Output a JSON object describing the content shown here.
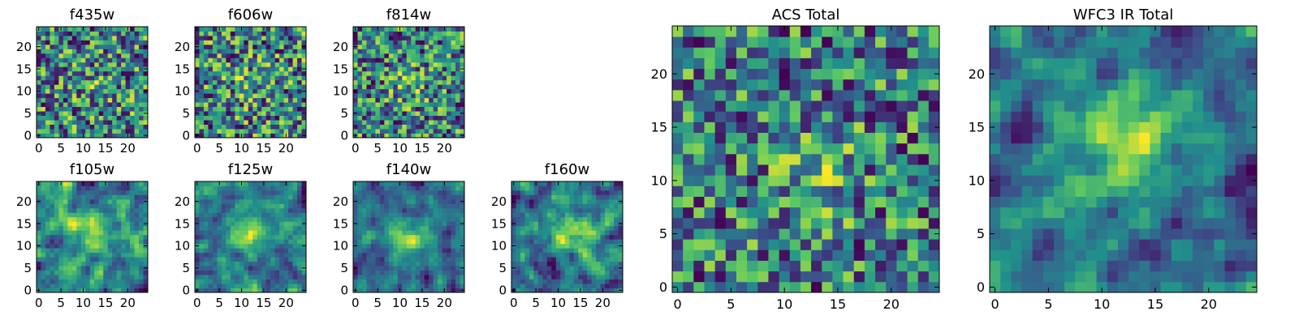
{
  "figure": {
    "colormap": [
      "#440154",
      "#3b528b",
      "#21918c",
      "#5ec962",
      "#fde725"
    ]
  },
  "chart_data": [
    {
      "type": "heatmap",
      "title": "f435w",
      "rows": 25,
      "cols": 25,
      "xticks": [
        0,
        5,
        10,
        15,
        20
      ],
      "yticks": [
        0,
        5,
        10,
        15,
        20
      ],
      "xlim": [
        -0.5,
        24.5
      ],
      "ylim": [
        -0.5,
        24.5
      ],
      "pattern": "noise",
      "center": [
        12,
        12
      ],
      "peak": 0.1,
      "seed": 11
    },
    {
      "type": "heatmap",
      "title": "f606w",
      "rows": 25,
      "cols": 25,
      "xticks": [
        0,
        5,
        10,
        15,
        20
      ],
      "yticks": [
        0,
        5,
        10,
        15,
        20
      ],
      "xlim": [
        -0.5,
        24.5
      ],
      "ylim": [
        -0.5,
        24.5
      ],
      "pattern": "noise",
      "center": [
        12,
        12
      ],
      "peak": 0.15,
      "seed": 23
    },
    {
      "type": "heatmap",
      "title": "f814w",
      "rows": 25,
      "cols": 25,
      "xticks": [
        0,
        5,
        10,
        15,
        20
      ],
      "yticks": [
        0,
        5,
        10,
        15,
        20
      ],
      "xlim": [
        -0.5,
        24.5
      ],
      "ylim": [
        -0.5,
        24.5
      ],
      "pattern": "noise",
      "center": [
        12,
        11
      ],
      "peak": 0.2,
      "seed": 37
    },
    {
      "type": "heatmap",
      "title": "f105w",
      "rows": 25,
      "cols": 25,
      "xticks": [
        0,
        5,
        10,
        15,
        20
      ],
      "yticks": [
        0,
        5,
        10,
        15,
        20
      ],
      "xlim": [
        -0.5,
        24.5
      ],
      "ylim": [
        -0.5,
        24.5
      ],
      "pattern": "smooth",
      "center": [
        13,
        13
      ],
      "peak": 0.3,
      "seed": 41
    },
    {
      "type": "heatmap",
      "title": "f125w",
      "rows": 25,
      "cols": 25,
      "xticks": [
        0,
        5,
        10,
        15,
        20
      ],
      "yticks": [
        0,
        5,
        10,
        15,
        20
      ],
      "xlim": [
        -0.5,
        24.5
      ],
      "ylim": [
        -0.5,
        24.5
      ],
      "pattern": "smooth",
      "center": [
        12,
        13
      ],
      "peak": 0.3,
      "seed": 53
    },
    {
      "type": "heatmap",
      "title": "f140w",
      "rows": 25,
      "cols": 25,
      "xticks": [
        0,
        5,
        10,
        15,
        20
      ],
      "yticks": [
        0,
        5,
        10,
        15,
        20
      ],
      "xlim": [
        -0.5,
        24.5
      ],
      "ylim": [
        -0.5,
        24.5
      ],
      "pattern": "smooth",
      "center": [
        12,
        12
      ],
      "peak": 0.35,
      "seed": 67
    },
    {
      "type": "heatmap",
      "title": "f160w",
      "rows": 25,
      "cols": 25,
      "xticks": [
        0,
        5,
        10,
        15,
        20
      ],
      "yticks": [
        0,
        5,
        10,
        15,
        20
      ],
      "xlim": [
        -0.5,
        24.5
      ],
      "ylim": [
        -0.5,
        24.5
      ],
      "pattern": "smooth",
      "center": [
        13,
        13
      ],
      "peak": 0.4,
      "seed": 79
    },
    {
      "type": "heatmap",
      "title": "ACS Total",
      "rows": 25,
      "cols": 25,
      "xticks": [
        0,
        5,
        10,
        15,
        20
      ],
      "yticks": [
        0,
        5,
        10,
        15,
        20
      ],
      "xlim": [
        -0.5,
        24.5
      ],
      "ylim": [
        -0.5,
        24.5
      ],
      "pattern": "noise",
      "center": [
        13,
        11
      ],
      "peak": 0.25,
      "seed": 97
    },
    {
      "type": "heatmap",
      "title": "WFC3 IR Total",
      "rows": 25,
      "cols": 25,
      "xticks": [
        0,
        5,
        10,
        15,
        20
      ],
      "yticks": [
        0,
        5,
        10,
        15,
        20
      ],
      "xlim": [
        -0.5,
        24.5
      ],
      "ylim": [
        -0.5,
        24.5
      ],
      "pattern": "smooth",
      "center": [
        12,
        13
      ],
      "peak": 0.45,
      "seed": 113
    }
  ]
}
